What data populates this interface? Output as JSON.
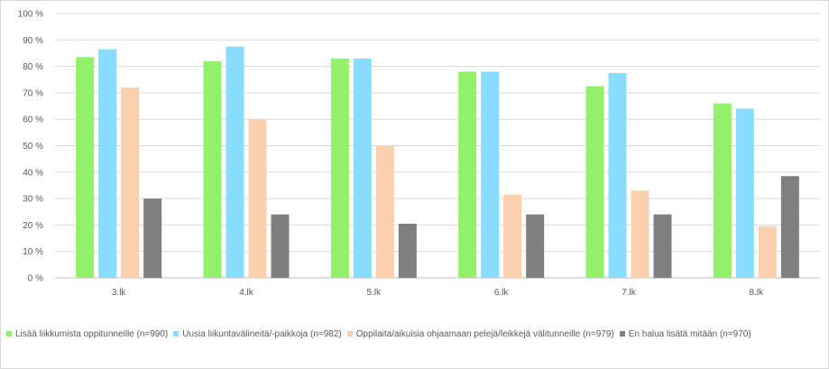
{
  "chart_data": {
    "type": "bar",
    "title": "",
    "xlabel": "",
    "ylabel": "",
    "ylim": [
      0,
      100
    ],
    "y_ticks": [
      "0 %",
      "10 %",
      "20 %",
      "30 %",
      "40 %",
      "50 %",
      "60 %",
      "70 %",
      "80 %",
      "90 %",
      "100 %"
    ],
    "grid": true,
    "legend_position": "bottom",
    "categories": [
      "3.lk",
      "4.lk",
      "5.lk",
      "6.lk",
      "7.lk",
      "8.lk"
    ],
    "series": [
      {
        "name": "Lisää liikkumista oppitunneille (n=990)",
        "color": "#92f06a",
        "values": [
          83.5,
          82,
          83,
          78,
          72.5,
          66
        ]
      },
      {
        "name": "Uusia liikuntavälineitä/-paikkoja (n=982)",
        "color": "#8adcff",
        "values": [
          86.5,
          87.5,
          83,
          78,
          77.5,
          64
        ]
      },
      {
        "name": "Oppilaita/aikuisia ohjaamaan pelejä/leikkejä välitunneille (n=979)",
        "color": "#fbd0ae",
        "values": [
          72,
          60,
          50,
          31.5,
          33,
          19.5
        ]
      },
      {
        "name": "En halua lisätä mitään (n=970)",
        "color": "#7f7f7f",
        "values": [
          30,
          24,
          20.5,
          24,
          24,
          38.5
        ]
      }
    ]
  }
}
